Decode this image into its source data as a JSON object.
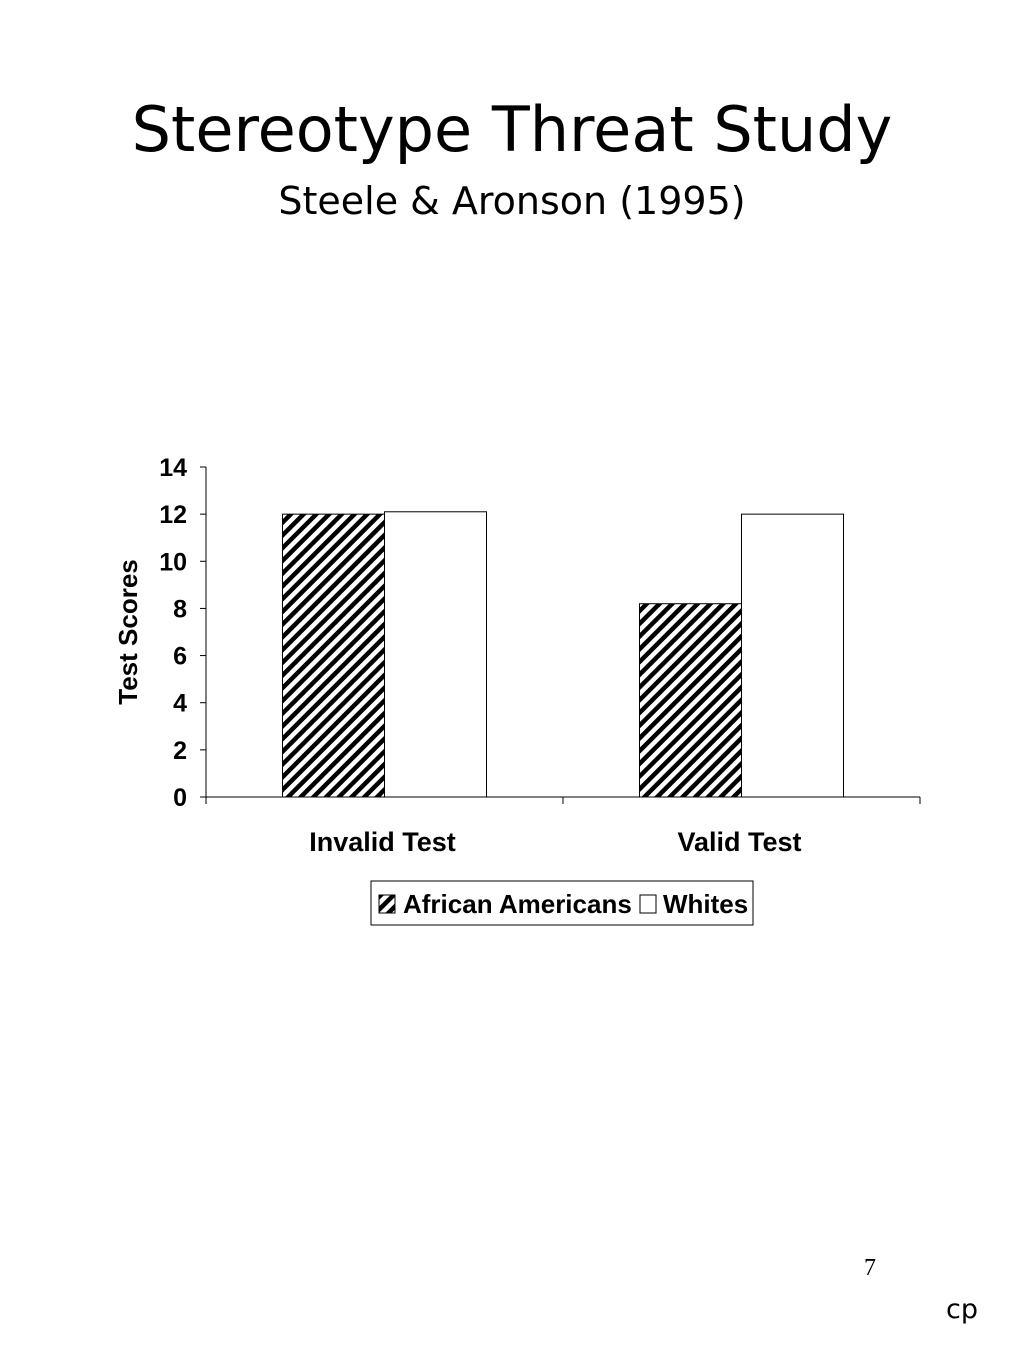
{
  "slide": {
    "title": "Stereotype Threat Study",
    "subtitle": "Steele & Aronson (1995)",
    "page_number": "7",
    "footer_mark": "cp"
  },
  "chart_data": {
    "type": "bar",
    "categories": [
      "Invalid Test",
      "Valid Test"
    ],
    "series": [
      {
        "name": "African Americans",
        "values": [
          12.0,
          8.2
        ],
        "fill": "hatched"
      },
      {
        "name": "Whites",
        "values": [
          12.1,
          12.0
        ],
        "fill": "white"
      }
    ],
    "xlabel": "",
    "ylabel": "Test Scores",
    "ylim": [
      0,
      14
    ],
    "yticks": [
      0,
      2,
      4,
      6,
      8,
      10,
      12,
      14
    ],
    "grid": false,
    "legend_position": "bottom",
    "colors": {
      "stroke": "#000000",
      "hatch": "#000000",
      "background": "#ffffff"
    }
  }
}
